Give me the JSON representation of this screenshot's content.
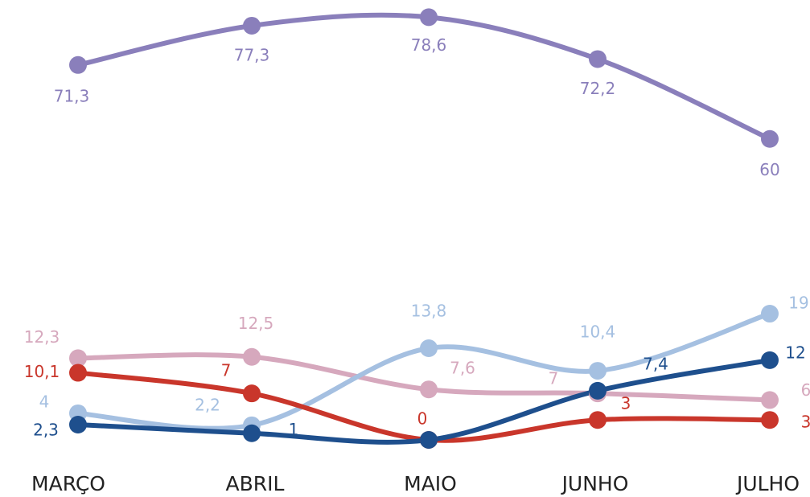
{
  "chart_data": {
    "type": "line",
    "categories": [
      "MARÇO",
      "ABRIL",
      "MAIO",
      "JUNHO",
      "JULHO"
    ],
    "ylim": [
      0,
      65
    ],
    "y2lim": [
      14,
      80
    ],
    "series": [
      {
        "color": "#8a7fbb",
        "axis": "y2",
        "values": [
          71.3,
          77.3,
          78.6,
          72.2,
          60
        ],
        "value_labels": [
          "71,3",
          "77,3",
          "78,6",
          "72,2",
          "60"
        ]
      },
      {
        "color": "#d6a8bd",
        "values": [
          12.3,
          12.5,
          7.6,
          7,
          6
        ],
        "value_labels": [
          "12,3",
          "12,5",
          "7,6",
          "7",
          "6"
        ]
      },
      {
        "color": "#a5c0e1",
        "values": [
          4,
          2.2,
          13.8,
          10.4,
          19
        ],
        "value_labels": [
          "4",
          "2,2",
          "13,8",
          "10,4",
          "19"
        ]
      },
      {
        "color": "#c9362b",
        "values": [
          10.1,
          7,
          0,
          3,
          3
        ],
        "value_labels": [
          "10,1",
          "7",
          "0",
          "3",
          "3"
        ]
      },
      {
        "color": "#1e4f8d",
        "values": [
          2.3,
          1,
          0,
          7.4,
          12
        ],
        "value_labels": [
          "2,3",
          "1",
          null,
          "7,4",
          "12"
        ]
      }
    ]
  }
}
